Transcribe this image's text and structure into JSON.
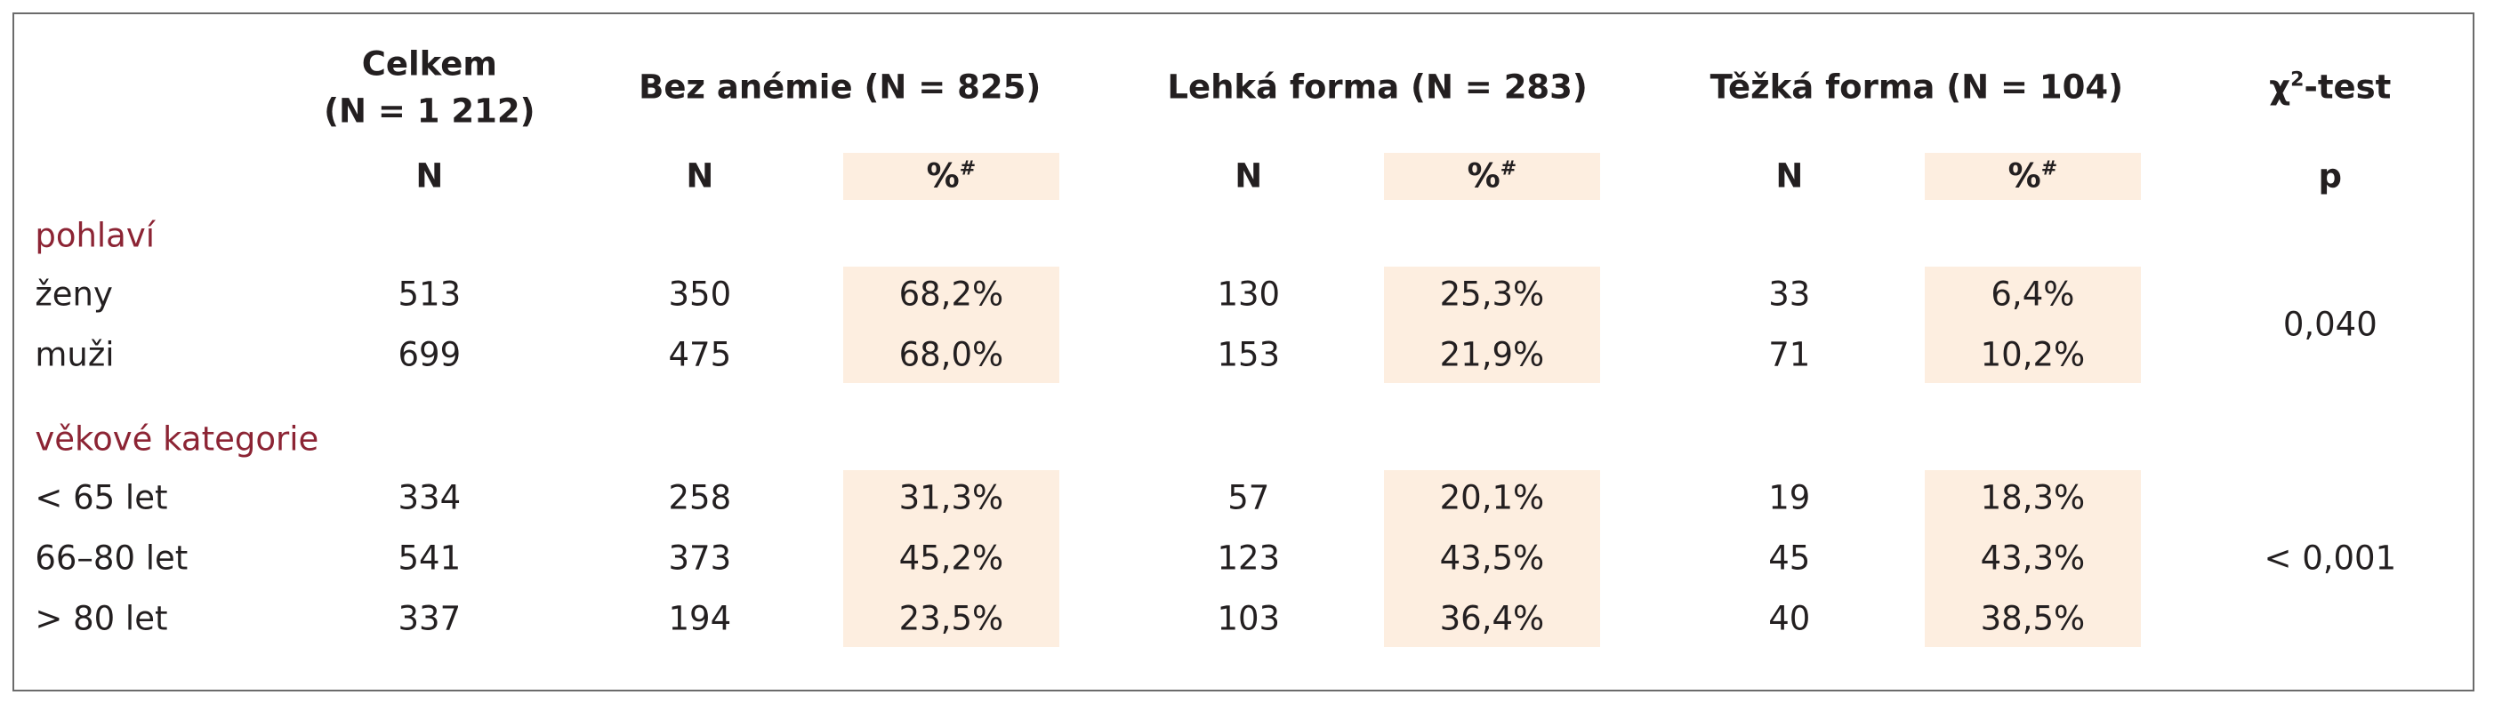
{
  "header": {
    "columns": [
      {
        "title": "Celkem",
        "subtitle": "(N = 1 212)"
      },
      {
        "title": "Bez anémie (N = 825)"
      },
      {
        "title": "Lehká forma (N = 283)"
      },
      {
        "title": "Těžká forma (N = 104)"
      },
      {
        "title": "χ",
        "sup": "2",
        "rest": "-test"
      }
    ],
    "subheaders": [
      {
        "text": "N"
      },
      {
        "text": "N"
      },
      {
        "text": "%",
        "sup": "#"
      },
      {
        "text": "N"
      },
      {
        "text": "%",
        "sup": "#"
      },
      {
        "text": "N"
      },
      {
        "text": "%",
        "sup": "#"
      },
      {
        "text": "p"
      }
    ]
  },
  "sections": [
    {
      "label": "pohlaví",
      "p": "0,040",
      "rows": [
        {
          "label": "ženy",
          "cells": [
            "513",
            "350",
            "68,2%",
            "130",
            "25,3%",
            "33",
            "6,4%"
          ]
        },
        {
          "label": "muži",
          "cells": [
            "699",
            "475",
            "68,0%",
            "153",
            "21,9%",
            "71",
            "10,2%"
          ]
        }
      ]
    },
    {
      "label": "věkové kategorie",
      "p": "< 0,001",
      "rows": [
        {
          "label": "< 65 let",
          "cells": [
            "334",
            "258",
            "31,3%",
            "57",
            "20,1%",
            "19",
            "18,3%"
          ]
        },
        {
          "label": "66–80 let",
          "cells": [
            "541",
            "373",
            "45,2%",
            "123",
            "43,5%",
            "45",
            "43,3%"
          ]
        },
        {
          "label": "> 80 let",
          "cells": [
            "337",
            "194",
            "23,5%",
            "103",
            "36,4%",
            "40",
            "38,5%"
          ]
        }
      ]
    }
  ]
}
